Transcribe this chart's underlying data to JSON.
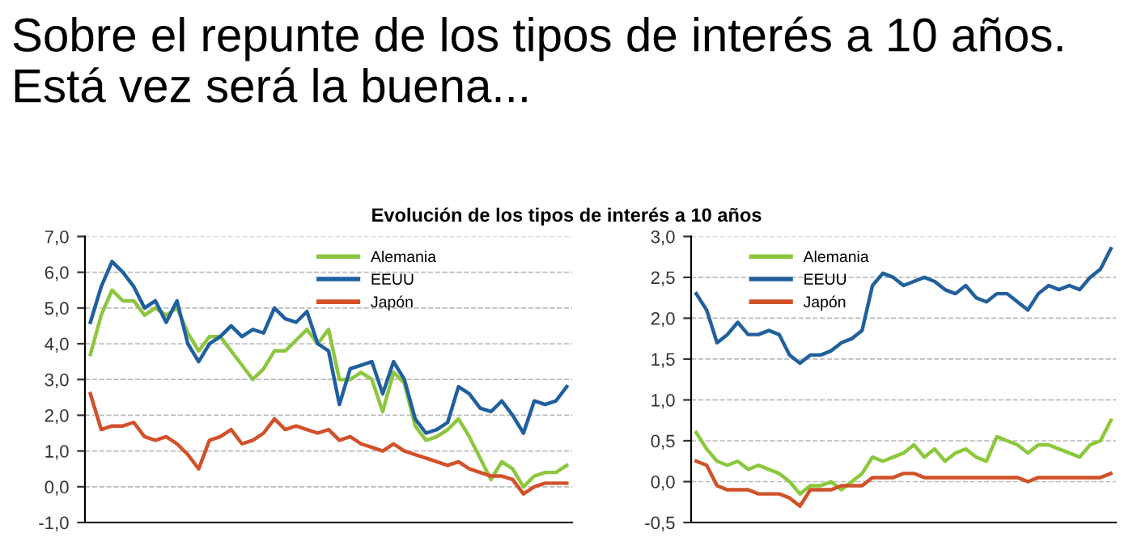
{
  "chart_data": [
    {
      "type": "line",
      "title": "Sobre el repunte de los tipos de interés a 10 años. Está vez será la buena...",
      "subtitle": "Evolución de los tipos de interés a 10 años",
      "categories": [
        null,
        null,
        null,
        null,
        null,
        null,
        null,
        null,
        null,
        null,
        null,
        null,
        null,
        null,
        null,
        null,
        null,
        null,
        null,
        null,
        null,
        null,
        null,
        null,
        null,
        null,
        null,
        null,
        null,
        null,
        null,
        null,
        null,
        null,
        null,
        null,
        null,
        null,
        null,
        null,
        null,
        null,
        null,
        null,
        null
      ],
      "series": [
        {
          "name": "Alemania",
          "color": "#8dc63f",
          "values": [
            3.7,
            4.8,
            5.5,
            5.2,
            5.2,
            4.8,
            5.0,
            4.8,
            5.0,
            4.3,
            3.8,
            4.2,
            4.2,
            3.8,
            3.4,
            3.0,
            3.3,
            3.8,
            3.8,
            4.1,
            4.4,
            4.0,
            4.4,
            3.0,
            3.0,
            3.2,
            3.0,
            2.1,
            3.2,
            2.9,
            1.7,
            1.3,
            1.4,
            1.6,
            1.9,
            1.4,
            0.8,
            0.2,
            0.7,
            0.5,
            0.0,
            0.3,
            0.4,
            0.4,
            0.6
          ]
        },
        {
          "name": "EEUU",
          "color": "#1f5fa0",
          "values": [
            4.6,
            5.6,
            6.3,
            6.0,
            5.6,
            5.0,
            5.2,
            4.6,
            5.2,
            4.0,
            3.5,
            4.0,
            4.2,
            4.5,
            4.2,
            4.4,
            4.3,
            5.0,
            4.7,
            4.6,
            4.9,
            4.0,
            3.8,
            2.3,
            3.3,
            3.4,
            3.5,
            2.6,
            3.5,
            3.0,
            1.9,
            1.5,
            1.6,
            1.8,
            2.8,
            2.6,
            2.2,
            2.1,
            2.4,
            2.0,
            1.5,
            2.4,
            2.3,
            2.4,
            2.8
          ]
        },
        {
          "name": "Japón",
          "color": "#d2502a",
          "values": [
            2.6,
            1.6,
            1.7,
            1.7,
            1.8,
            1.4,
            1.3,
            1.4,
            1.2,
            0.9,
            0.5,
            1.3,
            1.4,
            1.6,
            1.2,
            1.3,
            1.5,
            1.9,
            1.6,
            1.7,
            1.6,
            1.5,
            1.6,
            1.3,
            1.4,
            1.2,
            1.1,
            1.0,
            1.2,
            1.0,
            0.9,
            0.8,
            0.7,
            0.6,
            0.7,
            0.5,
            0.4,
            0.3,
            0.3,
            0.2,
            -0.2,
            0.0,
            0.1,
            0.1,
            0.1
          ]
        }
      ],
      "ylim": [
        -1.0,
        7.0
      ],
      "yticks": [
        {
          "value": -1.0,
          "label": "-1,0"
        },
        {
          "value": 0.0,
          "label": "0,0"
        },
        {
          "value": 1.0,
          "label": "1,0"
        },
        {
          "value": 2.0,
          "label": "2,0"
        },
        {
          "value": 3.0,
          "label": "3,0"
        },
        {
          "value": 4.0,
          "label": "4,0"
        },
        {
          "value": 5.0,
          "label": "5,0"
        },
        {
          "value": 6.0,
          "label": "6,0"
        },
        {
          "value": 7.0,
          "label": "7,0"
        }
      ],
      "grid": "y",
      "legend": "top right",
      "tick_labels": "y"
    },
    {
      "type": "line",
      "categories": [
        null,
        null,
        null,
        null,
        null,
        null,
        null,
        null,
        null,
        null,
        null,
        null,
        null,
        null,
        null,
        null,
        null,
        null,
        null,
        null,
        null,
        null,
        null,
        null,
        null,
        null,
        null,
        null,
        null,
        null,
        null,
        null,
        null,
        null,
        null,
        null,
        null,
        null,
        null,
        null,
        null
      ],
      "series": [
        {
          "name": "Alemania",
          "color": "#8cc83c",
          "values": [
            0.6,
            0.4,
            0.25,
            0.2,
            0.25,
            0.15,
            0.2,
            0.15,
            0.1,
            0.0,
            -0.15,
            -0.05,
            -0.05,
            0.0,
            -0.1,
            0.0,
            0.1,
            0.3,
            0.25,
            0.3,
            0.35,
            0.45,
            0.3,
            0.4,
            0.25,
            0.35,
            0.4,
            0.3,
            0.25,
            0.55,
            0.5,
            0.45,
            0.35,
            0.45,
            0.45,
            0.4,
            0.35,
            0.3,
            0.45,
            0.5,
            0.75
          ]
        },
        {
          "name": "EEUU",
          "color": "#21609c",
          "values": [
            2.3,
            2.1,
            1.7,
            1.8,
            1.95,
            1.8,
            1.8,
            1.85,
            1.8,
            1.55,
            1.45,
            1.55,
            1.55,
            1.6,
            1.7,
            1.75,
            1.85,
            2.4,
            2.55,
            2.5,
            2.4,
            2.45,
            2.5,
            2.45,
            2.35,
            2.3,
            2.4,
            2.25,
            2.2,
            2.3,
            2.3,
            2.2,
            2.1,
            2.3,
            2.4,
            2.35,
            2.4,
            2.35,
            2.5,
            2.6,
            2.85
          ]
        },
        {
          "name": "Japón",
          "color": "#cf5228",
          "values": [
            0.25,
            0.2,
            -0.05,
            -0.1,
            -0.1,
            -0.1,
            -0.15,
            -0.15,
            -0.15,
            -0.2,
            -0.3,
            -0.1,
            -0.1,
            -0.1,
            -0.05,
            -0.05,
            -0.05,
            0.05,
            0.05,
            0.05,
            0.1,
            0.1,
            0.05,
            0.05,
            0.05,
            0.05,
            0.05,
            0.05,
            0.05,
            0.05,
            0.05,
            0.05,
            0.0,
            0.05,
            0.05,
            0.05,
            0.05,
            0.05,
            0.05,
            0.05,
            0.1
          ]
        }
      ],
      "ylim": [
        -0.5,
        3.0
      ],
      "yticks": [
        {
          "value": -0.5,
          "label": "-0,5"
        },
        {
          "value": 0.0,
          "label": "0,0"
        },
        {
          "value": 0.5,
          "label": "0,5"
        },
        {
          "value": 1.0,
          "label": "1,0"
        },
        {
          "value": 1.5,
          "label": "1,5"
        },
        {
          "value": 2.0,
          "label": "2,0"
        },
        {
          "value": 2.5,
          "label": "2,5"
        },
        {
          "value": 3.0,
          "label": "3,0"
        }
      ],
      "grid": "y",
      "legend": "top",
      "tick_labels": "y"
    }
  ]
}
